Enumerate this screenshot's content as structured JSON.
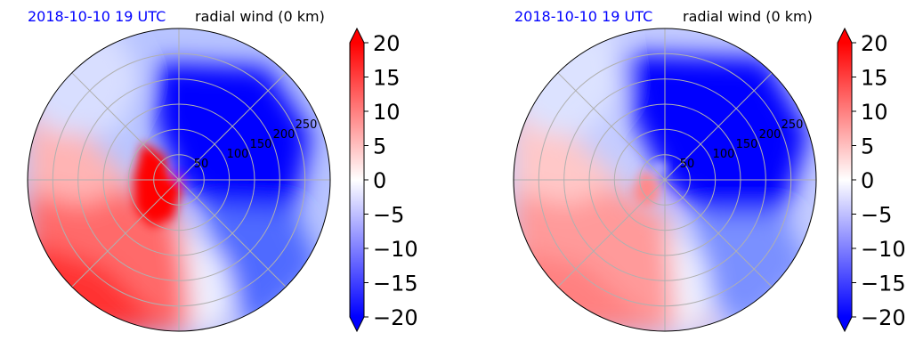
{
  "chart_data": [
    {
      "type": "polar contour",
      "time_label": "2018-10-10 19 UTC",
      "title": "radial wind (0 km)",
      "radial_ticks": [
        "50",
        "100",
        "150",
        "200",
        "250"
      ],
      "radial_max": 300,
      "colorbar": {
        "ticks": [
          "20",
          "15",
          "10",
          "5",
          "0",
          "−5",
          "−10",
          "−15",
          "−20"
        ],
        "range": [
          -20,
          20
        ],
        "cmap": "bwr",
        "extend": "both"
      },
      "field": {
        "outflow_sector": "west to south-west",
        "inflow_sector": "north-east to east",
        "core_max": 20,
        "core_bearing": "south-west near center"
      }
    },
    {
      "type": "polar contour",
      "time_label": "2018-10-10 19 UTC",
      "title": "radial wind (0 km)",
      "radial_ticks": [
        "50",
        "100",
        "150",
        "200",
        "250"
      ],
      "radial_max": 300,
      "colorbar": {
        "ticks": [
          "20",
          "15",
          "10",
          "5",
          "0",
          "−5",
          "−10",
          "−15",
          "−20"
        ],
        "range": [
          -20,
          20
        ],
        "cmap": "bwr",
        "extend": "both"
      },
      "field": {
        "outflow_sector": "west to south-west",
        "inflow_sector": "north-east to east",
        "core_max": 9,
        "core_bearing": "south-west near center"
      }
    }
  ],
  "colors": {
    "time_label": "#0000ff",
    "grid": "#b0b0b0",
    "positive": "#ff0000",
    "negative": "#0000ff"
  }
}
